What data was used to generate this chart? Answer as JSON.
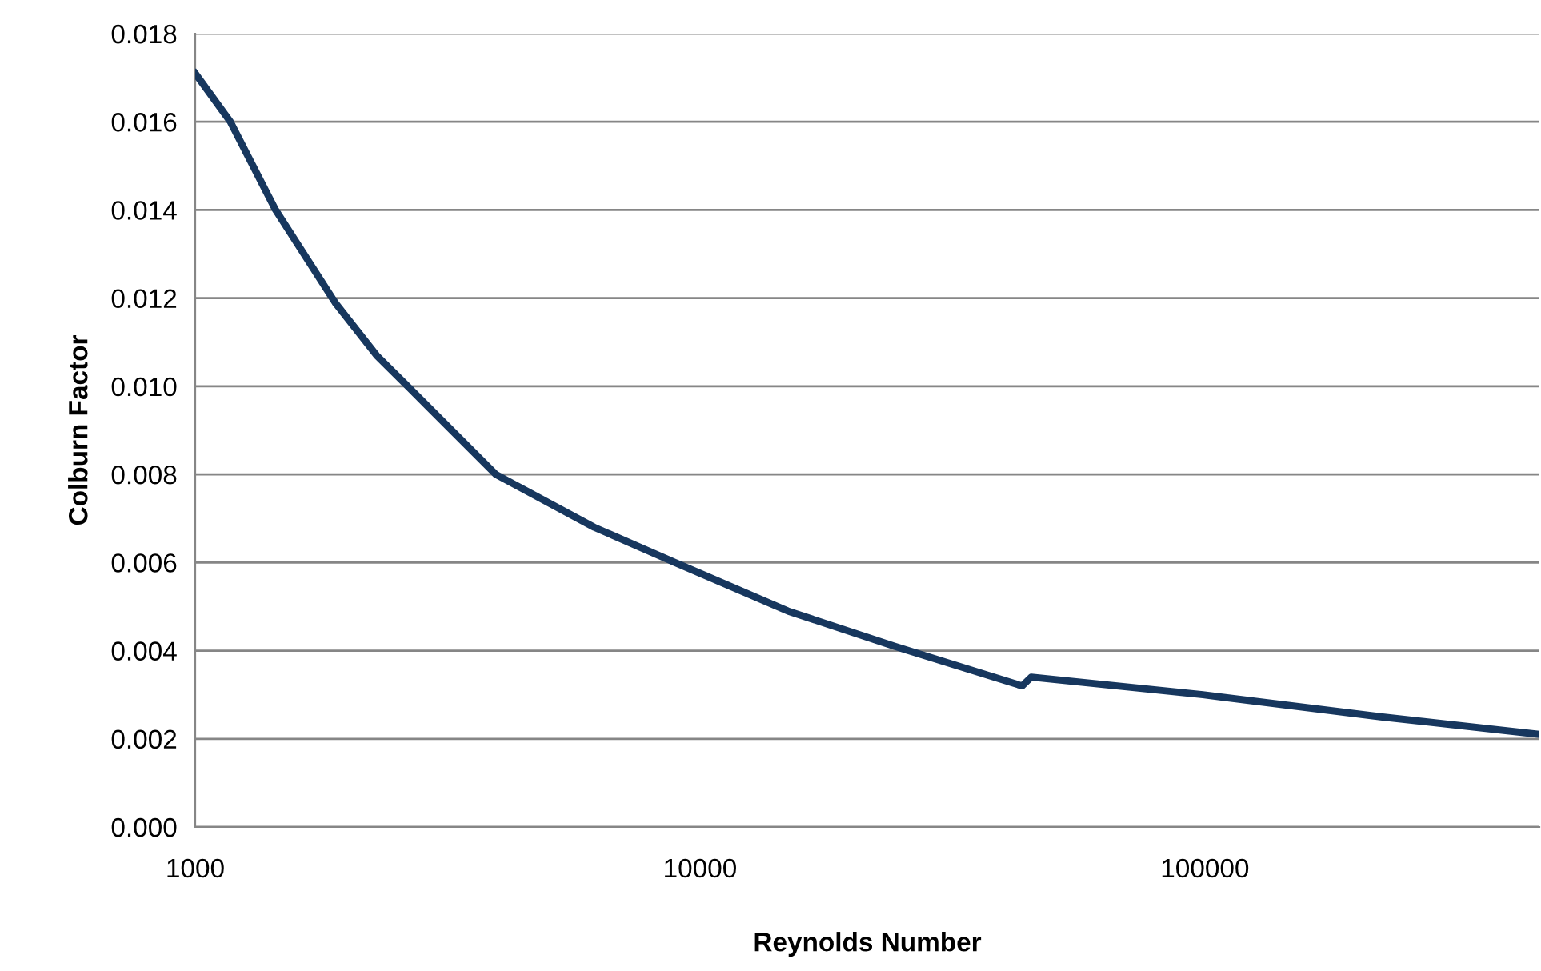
{
  "chart_data": {
    "type": "line",
    "xlabel": "Reynolds Number",
    "ylabel": "Colburn Factor",
    "log": "x",
    "grid": "y",
    "marker": "none",
    "line_style": "solid",
    "xlim": [
      1000,
      460000
    ],
    "xticks": [
      1000,
      10000,
      100000
    ],
    "ylim": [
      0,
      0.018
    ],
    "yticks": [
      {
        "value": 0,
        "label": "0.000"
      },
      {
        "value": 0.002,
        "label": "0.002"
      },
      {
        "value": 0.004,
        "label": "0.004"
      },
      {
        "value": 0.006,
        "label": "0.006"
      },
      {
        "value": 0.008,
        "label": "0.008"
      },
      {
        "value": 0.01,
        "label": "0.010"
      },
      {
        "value": 0.012,
        "label": "0.012"
      },
      {
        "value": 0.014,
        "label": "0.014"
      },
      {
        "value": 0.016,
        "label": "0.016"
      },
      {
        "value": 0.018,
        "label": "0.018"
      }
    ],
    "series": [
      {
        "color": "#17375e",
        "x": [
          1000,
          1174,
          1443,
          1893,
          2288,
          2636,
          3941,
          6173,
          8926,
          14920,
          24260,
          43450,
          45290,
          99100,
          223000,
          460000
        ],
        "values": [
          0.0171,
          0.016,
          0.014,
          0.0119,
          0.0107,
          0.01,
          0.008,
          0.0068,
          0.006,
          0.0049,
          0.0041,
          0.0032,
          0.0034,
          0.003,
          0.0025,
          0.0021
        ]
      }
    ]
  }
}
